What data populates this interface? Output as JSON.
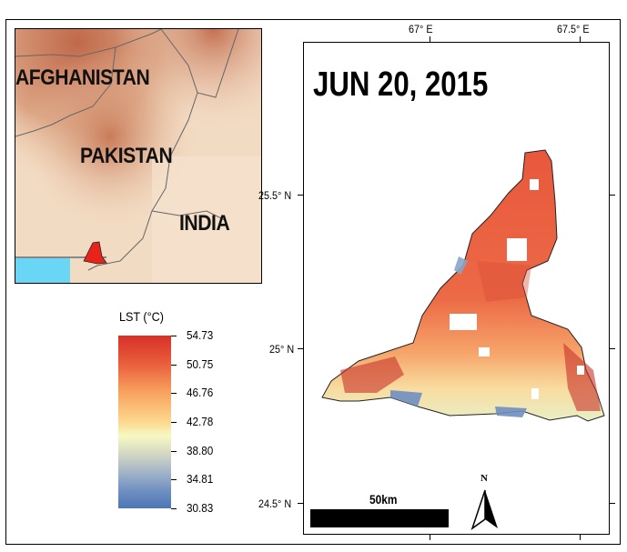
{
  "inset": {
    "labels": {
      "afghanistan": "AFGHANISTAN",
      "pakistan": "PAKISTAN",
      "india": "INDIA"
    },
    "colors": {
      "sea": "#69d6f5",
      "highlight": "#e8231c",
      "terrain_high": "#c0694a",
      "terrain_low": "#f3dfc9"
    }
  },
  "legend": {
    "title": "LST (°C)",
    "ticks": [
      "54.73",
      "50.75",
      "46.76",
      "42.78",
      "38.80",
      "34.81",
      "30.83"
    ],
    "range": [
      30.83,
      54.73
    ],
    "colormap": "red-yellow-blue (diverging, reversed)"
  },
  "map": {
    "date": "JUN 20, 2015",
    "lon_labels": [
      "67° E",
      "67.5° E"
    ],
    "lat_labels": [
      "25.5° N",
      "25° N",
      "24.5° N"
    ],
    "scale_label": "50km",
    "north_label": "N"
  }
}
